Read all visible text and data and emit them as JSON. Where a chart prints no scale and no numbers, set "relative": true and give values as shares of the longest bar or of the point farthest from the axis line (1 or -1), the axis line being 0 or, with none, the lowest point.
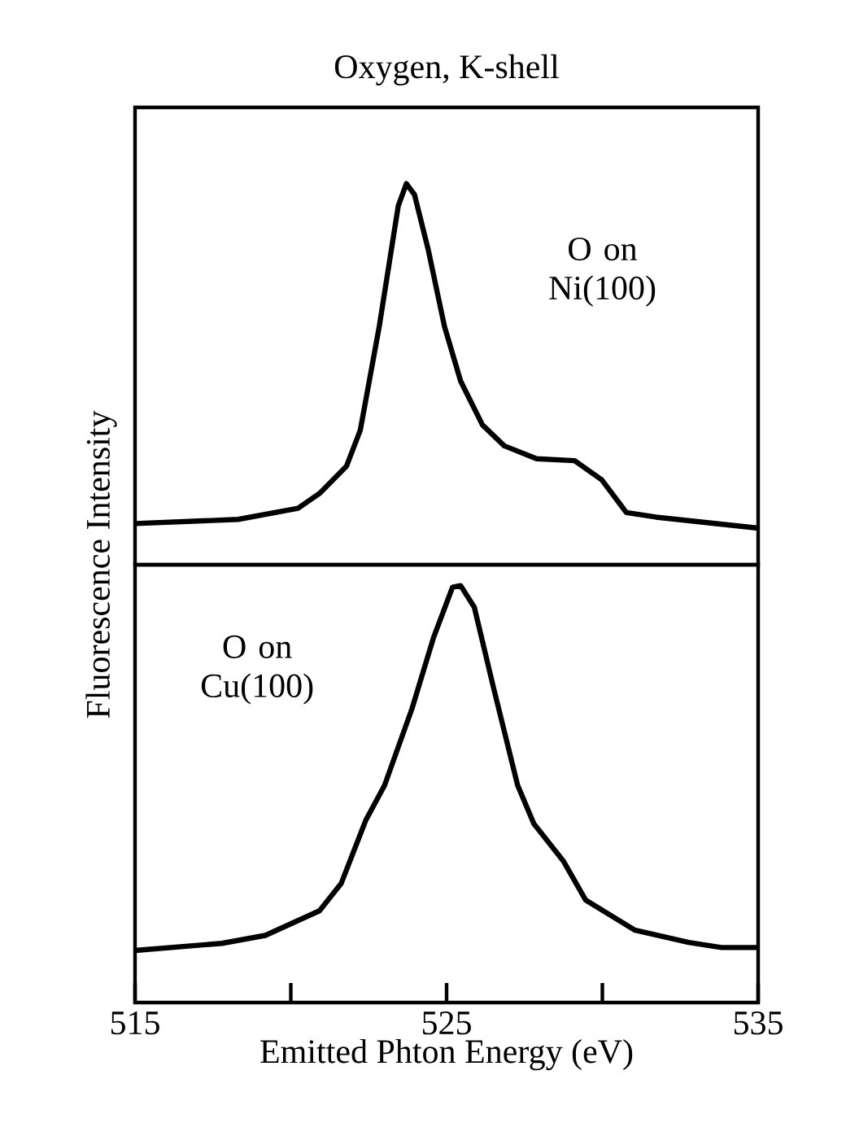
{
  "chart_data": [
    {
      "type": "line",
      "title": "Oxygen, K-shell",
      "ylabel": "Fluorescence Intensity",
      "relative": true,
      "xlim": [
        515,
        535
      ],
      "tick_labels": false,
      "series": [
        {
          "name": "O on Ni(100)",
          "color": "#000000",
          "x": [
            515,
            518.31,
            520.23,
            520.92,
            521.79,
            522.23,
            522.84,
            523.45,
            523.71,
            523.97,
            524.41,
            524.93,
            525.45,
            526.15,
            526.85,
            527.89,
            529.11,
            529.98,
            530.77,
            531.72,
            535
          ],
          "values": [
            0.108,
            0.119,
            0.148,
            0.187,
            0.259,
            0.353,
            0.626,
            0.942,
            1.0,
            0.971,
            0.827,
            0.626,
            0.482,
            0.367,
            0.312,
            0.278,
            0.273,
            0.223,
            0.137,
            0.125,
            0.096
          ]
        }
      ]
    },
    {
      "type": "line",
      "xlabel": "Emitted Phton Energy (eV)",
      "relative": true,
      "xlim": [
        515,
        535
      ],
      "tick_labels": "x",
      "xticks": [
        515,
        {
          "value": 520,
          "label": null
        },
        525,
        {
          "value": 530,
          "label": null
        },
        535
      ],
      "series": [
        {
          "name": "O on Cu(100)",
          "color": "#000000",
          "x": [
            515,
            517.79,
            519.18,
            520.92,
            521.62,
            522.4,
            523.01,
            523.89,
            524.58,
            525.19,
            525.45,
            525.89,
            526.5,
            527.28,
            527.8,
            528.76,
            529.46,
            531.03,
            532.77,
            533.82,
            535
          ],
          "values": [
            0.125,
            0.142,
            0.161,
            0.22,
            0.286,
            0.436,
            0.521,
            0.705,
            0.875,
            0.996,
            1.0,
            0.948,
            0.757,
            0.521,
            0.429,
            0.338,
            0.246,
            0.174,
            0.144,
            0.132,
            0.132
          ]
        }
      ]
    }
  ]
}
